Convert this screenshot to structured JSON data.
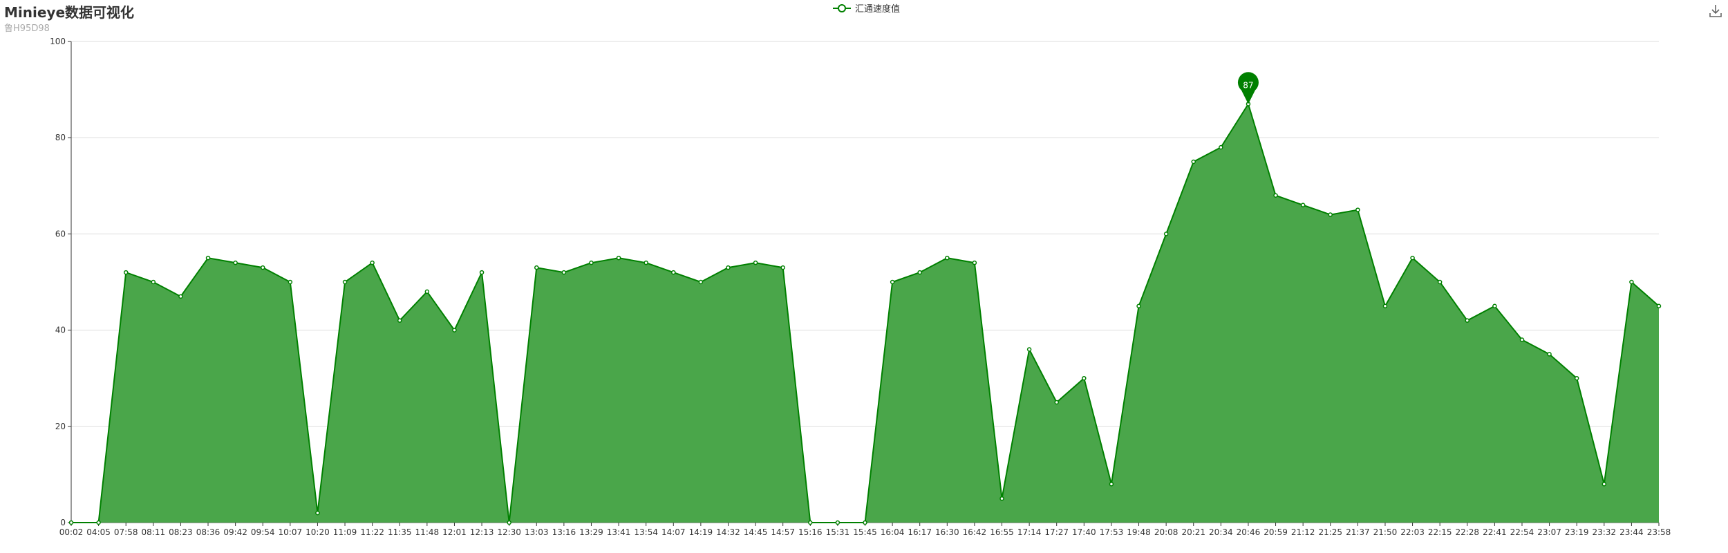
{
  "title": "Minieye数据可视化",
  "subtitle": "鲁H95D98",
  "toolbar": {
    "download_icon": "download-icon"
  },
  "colors": {
    "line": "#008000",
    "area": "#4aa64a",
    "axis": "#333333",
    "grid": "#dddddd",
    "marker": "#008000"
  },
  "chart_data": {
    "type": "area",
    "title": "Minieye数据可视化",
    "subtitle": "鲁H95D98",
    "legend": {
      "position": "top-center",
      "entries": [
        "汇通速度值"
      ]
    },
    "grid": true,
    "ylim": [
      0,
      100
    ],
    "yticks": [
      0,
      20,
      40,
      60,
      80,
      100
    ],
    "xticks": [
      "00:02",
      "04:05",
      "07:58",
      "08:11",
      "08:23",
      "08:36",
      "09:42",
      "09:54",
      "10:07",
      "10:20",
      "11:09",
      "11:22",
      "11:35",
      "11:48",
      "12:01",
      "12:13",
      "12:30",
      "13:03",
      "13:16",
      "13:29",
      "13:41",
      "13:54",
      "14:07",
      "14:19",
      "14:32",
      "14:45",
      "14:57",
      "15:16",
      "15:31",
      "15:45",
      "16:04",
      "16:17",
      "16:30",
      "16:42",
      "16:55",
      "17:14",
      "17:27",
      "17:40",
      "17:53",
      "19:48",
      "20:08",
      "20:21",
      "20:34",
      "20:46",
      "20:59",
      "21:12",
      "21:25",
      "21:37",
      "21:50",
      "22:03",
      "22:15",
      "22:28",
      "22:41",
      "22:54",
      "23:07",
      "23:19",
      "23:32",
      "23:44",
      "23:58"
    ],
    "max_marker": {
      "label": "87",
      "value": 87,
      "category_index": 43
    },
    "series": [
      {
        "name": "汇通速度值",
        "x": [
          "00:02",
          "04:05",
          "07:58",
          "08:11",
          "08:23",
          "08:36",
          "09:42",
          "09:54",
          "10:07",
          "10:20",
          "11:09",
          "11:22",
          "11:35",
          "11:48",
          "12:01",
          "12:13",
          "12:30",
          "13:03",
          "13:16",
          "13:29",
          "13:41",
          "13:54",
          "14:07",
          "14:19",
          "14:32",
          "14:45",
          "14:57",
          "15:16",
          "15:31",
          "15:45",
          "16:04",
          "16:17",
          "16:30",
          "16:42",
          "16:55",
          "17:14",
          "17:27",
          "17:40",
          "17:53",
          "19:48",
          "20:08",
          "20:21",
          "20:34",
          "20:46",
          "20:59",
          "21:12",
          "21:25",
          "21:37",
          "21:50",
          "22:03",
          "22:15",
          "22:28",
          "22:41",
          "22:54",
          "23:07",
          "23:19",
          "23:32",
          "23:44",
          "23:58"
        ],
        "values": [
          0,
          0,
          52,
          50,
          47,
          55,
          54,
          53,
          50,
          2,
          50,
          54,
          42,
          48,
          40,
          52,
          0,
          53,
          52,
          54,
          55,
          54,
          52,
          50,
          53,
          54,
          53,
          0,
          0,
          0,
          50,
          52,
          55,
          54,
          5,
          36,
          25,
          30,
          8,
          45,
          60,
          75,
          78,
          87,
          68,
          66,
          64,
          65,
          45,
          55,
          50,
          42,
          45,
          38,
          35,
          30,
          8,
          50,
          45
        ]
      }
    ]
  }
}
